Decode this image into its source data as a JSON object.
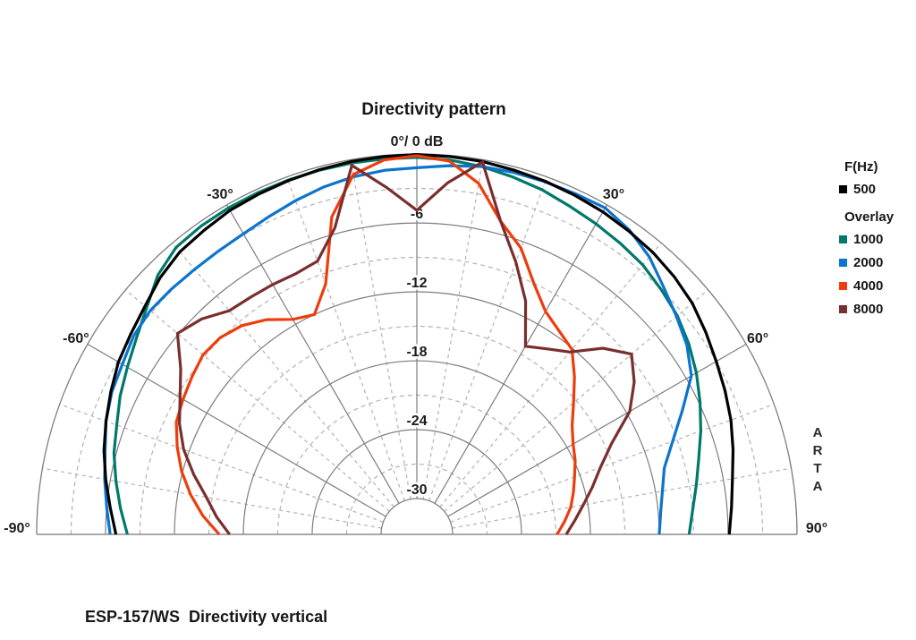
{
  "title": "Directivity pattern",
  "caption": "ESP-157/WS  Directivity vertical",
  "watermark": [
    "A",
    "R",
    "T",
    "A"
  ],
  "legend": {
    "primary_header": "F(Hz)",
    "primary": [
      {
        "label": "500",
        "color": "#000000"
      }
    ],
    "overlay_header": "Overlay",
    "overlay": [
      {
        "label": "1000",
        "color": "#00786a"
      },
      {
        "label": "2000",
        "color": "#0c74ce"
      },
      {
        "label": "4000",
        "color": "#ee3d0c"
      },
      {
        "label": "8000",
        "color": "#7a2e2e"
      }
    ]
  },
  "chart_data": {
    "type": "line",
    "subtype": "polar-directivity-half",
    "title": "Directivity pattern",
    "apex_label": "0°/ 0 dB",
    "angle_unit": "deg",
    "angle_range": [
      -90,
      90
    ],
    "angle_step_deg": 5,
    "radial_unit": "dB",
    "radial_range": [
      0,
      -30
    ],
    "radial_major_step_db": 6,
    "radial_minor_step_db": 3,
    "spoke_major_step_deg": 30,
    "spoke_minor_step_deg": 10,
    "grid": true,
    "legend_position": "right",
    "radial_tick_labels": [
      {
        "db": -6,
        "label": "-6"
      },
      {
        "db": -12,
        "label": "-12"
      },
      {
        "db": -18,
        "label": "-18"
      },
      {
        "db": -24,
        "label": "-24"
      },
      {
        "db": -30,
        "label": "-30"
      }
    ],
    "angle_tick_labels": [
      {
        "angle": -30,
        "label": "-30°"
      },
      {
        "angle": 30,
        "label": "30°"
      },
      {
        "angle": -60,
        "label": "-60°"
      },
      {
        "angle": 60,
        "label": "60°"
      },
      {
        "angle": -90,
        "label": "-90°"
      },
      {
        "angle": 90,
        "label": "90°"
      }
    ],
    "angles_deg": [
      -90,
      -85,
      -80,
      -75,
      -70,
      -65,
      -60,
      -55,
      -50,
      -45,
      -40,
      -35,
      -30,
      -25,
      -20,
      -15,
      -10,
      -5,
      0,
      5,
      10,
      15,
      20,
      25,
      30,
      35,
      40,
      45,
      50,
      55,
      60,
      65,
      70,
      75,
      80,
      85,
      90
    ],
    "draw_order": [
      "1000",
      "2000",
      "500",
      "4000",
      "8000"
    ],
    "series": [
      {
        "name": "500",
        "color": "#000000",
        "values": [
          -6.9,
          -6.3,
          -5.6,
          -4.9,
          -4.3,
          -3.7,
          -3.1,
          -2.7,
          -2.2,
          -1.5,
          -1.0,
          -0.8,
          -0.55,
          -0.45,
          -0.35,
          -0.25,
          -0.15,
          -0.1,
          -0.05,
          -0.1,
          -0.15,
          -0.3,
          -0.4,
          -0.55,
          -0.7,
          -0.9,
          -1.1,
          -1.4,
          -1.8,
          -2.4,
          -3.0,
          -3.5,
          -4.0,
          -4.6,
          -5.2,
          -5.6,
          -5.9
        ]
      },
      {
        "name": "1000",
        "color": "#00786a",
        "values": [
          -7.9,
          -7.2,
          -6.5,
          -5.8,
          -5.3,
          -4.6,
          -4.0,
          -3.3,
          -2.4,
          -1.2,
          -0.5,
          -0.35,
          -0.3,
          -0.3,
          -0.3,
          -0.3,
          -0.3,
          -0.3,
          -0.3,
          -0.4,
          -0.6,
          -0.9,
          -1.2,
          -1.6,
          -1.9,
          -2.2,
          -2.5,
          -3.0,
          -3.5,
          -4.2,
          -5.0,
          -5.9,
          -6.8,
          -7.7,
          -8.4,
          -9.0,
          -9.4
        ]
      },
      {
        "name": "2000",
        "color": "#0c74ce",
        "values": [
          -6.4,
          -6.0,
          -5.5,
          -5.0,
          -4.3,
          -3.8,
          -3.5,
          -3.0,
          -2.8,
          -2.9,
          -3.0,
          -3.0,
          -2.9,
          -2.6,
          -2.2,
          -1.8,
          -1.5,
          -1.3,
          -1.2,
          -0.9,
          -0.6,
          -0.5,
          -0.45,
          -0.4,
          -0.3,
          -0.8,
          -1.6,
          -2.7,
          -3.6,
          -4.4,
          -5.5,
          -7.6,
          -9.4,
          -10.8,
          -11.4,
          -11.8,
          -12.0
        ]
      },
      {
        "name": "4000",
        "color": "#ee3d0c",
        "values": [
          -15.9,
          -14.4,
          -13.1,
          -11.9,
          -10.9,
          -10.0,
          -9.6,
          -9.2,
          -8.8,
          -8.9,
          -9.4,
          -10.3,
          -11.5,
          -12.0,
          -9.9,
          -4.5,
          -1.3,
          -0.4,
          -0.15,
          -0.5,
          -2.1,
          -4.9,
          -6.6,
          -9.0,
          -10.7,
          -11.5,
          -12.1,
          -13.7,
          -15.3,
          -16.6,
          -17.4,
          -17.9,
          -18.5,
          -19.0,
          -19.5,
          -20.2,
          -20.9
        ]
      },
      {
        "name": "8000",
        "color": "#7a2e2e",
        "values": [
          -16.8,
          -15.6,
          -14.5,
          -13.0,
          -11.5,
          -10.3,
          -9.3,
          -8.0,
          -5.9,
          -6.6,
          -7.7,
          -7.9,
          -8.0,
          -8.1,
          -7.8,
          -5.5,
          -0.5,
          -2.8,
          -4.9,
          -2.4,
          -0.2,
          -4.9,
          -7.9,
          -10.7,
          -14.2,
          -13.4,
          -12.4,
          -10.2,
          -8.7,
          -10.0,
          -11.7,
          -14.4,
          -16.1,
          -17.3,
          -18.4,
          -19.3,
          -20.1
        ]
      }
    ]
  },
  "style_colors": {
    "grid_solid": "#7d7d7d",
    "grid_dashed": "#b2b2b2",
    "baseline": "#8c8c8c",
    "text": "#1c1c1c"
  }
}
